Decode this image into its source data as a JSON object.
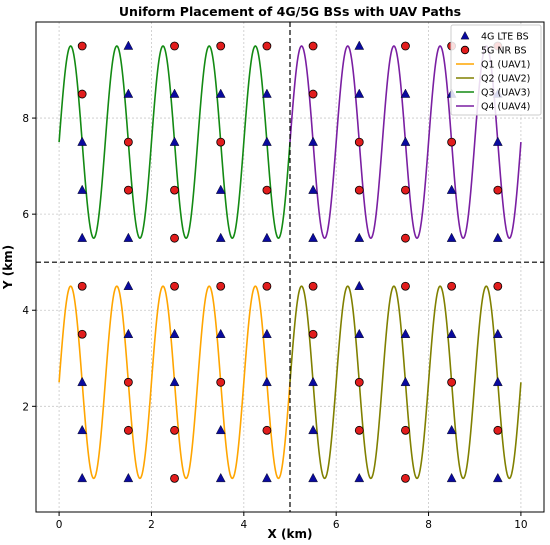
{
  "chart_data": {
    "type": "scatter",
    "title": "Uniform Placement of 4G/5G BSs with UAV Paths",
    "xlabel": "X (km)",
    "ylabel": "Y (km)",
    "xlim": [
      -0.5,
      10.5
    ],
    "ylim": [
      -0.2,
      10.0
    ],
    "xticks": [
      0,
      2,
      4,
      6,
      8,
      10
    ],
    "yticks": [
      2,
      4,
      6,
      8
    ],
    "grid": true,
    "legend_position": "top-right",
    "dividers": {
      "x": 5,
      "y": 5
    },
    "base_stations": {
      "lte": {
        "name": "4G LTE BS",
        "color": "#0a0a9e",
        "marker": "triangle",
        "points": [
          [
            0.5,
            0.5
          ],
          [
            0.5,
            1.5
          ],
          [
            0.5,
            2.5
          ],
          [
            1.5,
            0.5
          ],
          [
            1.5,
            3.5
          ],
          [
            1.5,
            4.5
          ],
          [
            2.5,
            2.5
          ],
          [
            2.5,
            3.5
          ],
          [
            3.5,
            0.5
          ],
          [
            3.5,
            1.5
          ],
          [
            3.5,
            3.5
          ],
          [
            4.5,
            0.5
          ],
          [
            4.5,
            2.5
          ],
          [
            4.5,
            3.5
          ],
          [
            0.5,
            5.5
          ],
          [
            0.5,
            6.5
          ],
          [
            0.5,
            7.5
          ],
          [
            1.5,
            5.5
          ],
          [
            1.5,
            8.5
          ],
          [
            1.5,
            9.5
          ],
          [
            2.5,
            7.5
          ],
          [
            2.5,
            8.5
          ],
          [
            3.5,
            5.5
          ],
          [
            3.5,
            6.5
          ],
          [
            3.5,
            8.5
          ],
          [
            4.5,
            5.5
          ],
          [
            4.5,
            7.5
          ],
          [
            4.5,
            8.5
          ],
          [
            5.5,
            0.5
          ],
          [
            5.5,
            1.5
          ],
          [
            5.5,
            2.5
          ],
          [
            6.5,
            0.5
          ],
          [
            6.5,
            3.5
          ],
          [
            6.5,
            4.5
          ],
          [
            7.5,
            2.5
          ],
          [
            7.5,
            3.5
          ],
          [
            8.5,
            0.5
          ],
          [
            8.5,
            1.5
          ],
          [
            8.5,
            3.5
          ],
          [
            9.5,
            0.5
          ],
          [
            9.5,
            2.5
          ],
          [
            9.5,
            3.5
          ],
          [
            5.5,
            5.5
          ],
          [
            5.5,
            6.5
          ],
          [
            5.5,
            7.5
          ],
          [
            6.5,
            5.5
          ],
          [
            6.5,
            8.5
          ],
          [
            6.5,
            9.5
          ],
          [
            7.5,
            7.5
          ],
          [
            7.5,
            8.5
          ],
          [
            8.5,
            5.5
          ],
          [
            8.5,
            6.5
          ],
          [
            8.5,
            8.5
          ],
          [
            9.5,
            5.5
          ],
          [
            9.5,
            7.5
          ],
          [
            9.5,
            8.5
          ]
        ]
      },
      "nr": {
        "name": "5G NR BS",
        "color": "#e11d1d",
        "marker": "circle",
        "points": [
          [
            0.5,
            3.5
          ],
          [
            0.5,
            4.5
          ],
          [
            1.5,
            1.5
          ],
          [
            1.5,
            2.5
          ],
          [
            2.5,
            0.5
          ],
          [
            2.5,
            1.5
          ],
          [
            2.5,
            4.5
          ],
          [
            3.5,
            2.5
          ],
          [
            3.5,
            4.5
          ],
          [
            4.5,
            1.5
          ],
          [
            4.5,
            4.5
          ],
          [
            0.5,
            8.5
          ],
          [
            0.5,
            9.5
          ],
          [
            1.5,
            6.5
          ],
          [
            1.5,
            7.5
          ],
          [
            2.5,
            5.5
          ],
          [
            2.5,
            6.5
          ],
          [
            2.5,
            9.5
          ],
          [
            3.5,
            7.5
          ],
          [
            3.5,
            9.5
          ],
          [
            4.5,
            6.5
          ],
          [
            4.5,
            9.5
          ],
          [
            5.5,
            3.5
          ],
          [
            5.5,
            4.5
          ],
          [
            6.5,
            1.5
          ],
          [
            6.5,
            2.5
          ],
          [
            7.5,
            0.5
          ],
          [
            7.5,
            1.5
          ],
          [
            7.5,
            4.5
          ],
          [
            8.5,
            2.5
          ],
          [
            8.5,
            4.5
          ],
          [
            9.5,
            1.5
          ],
          [
            9.5,
            4.5
          ],
          [
            5.5,
            8.5
          ],
          [
            5.5,
            9.5
          ],
          [
            6.5,
            6.5
          ],
          [
            6.5,
            7.5
          ],
          [
            7.5,
            5.5
          ],
          [
            7.5,
            6.5
          ],
          [
            7.5,
            9.5
          ],
          [
            8.5,
            7.5
          ],
          [
            8.5,
            9.5
          ],
          [
            9.5,
            6.5
          ],
          [
            9.5,
            9.5
          ]
        ]
      }
    },
    "series": [
      {
        "name": "Q1 (UAV1)",
        "color": "#ffa500",
        "x_range": [
          0,
          5
        ],
        "center_y": 2.5,
        "amplitude": 2,
        "cycles": 5
      },
      {
        "name": "Q2 (UAV2)",
        "color": "#808000",
        "x_range": [
          5,
          10
        ],
        "center_y": 2.5,
        "amplitude": 2,
        "cycles": 5
      },
      {
        "name": "Q3 (UAV3)",
        "color": "#138a13",
        "x_range": [
          0,
          5
        ],
        "center_y": 7.5,
        "amplitude": 2,
        "cycles": 5
      },
      {
        "name": "Q4 (UAV4)",
        "color": "#7a1fa2",
        "x_range": [
          5,
          10
        ],
        "center_y": 7.5,
        "amplitude": 2,
        "cycles": 5
      }
    ]
  }
}
